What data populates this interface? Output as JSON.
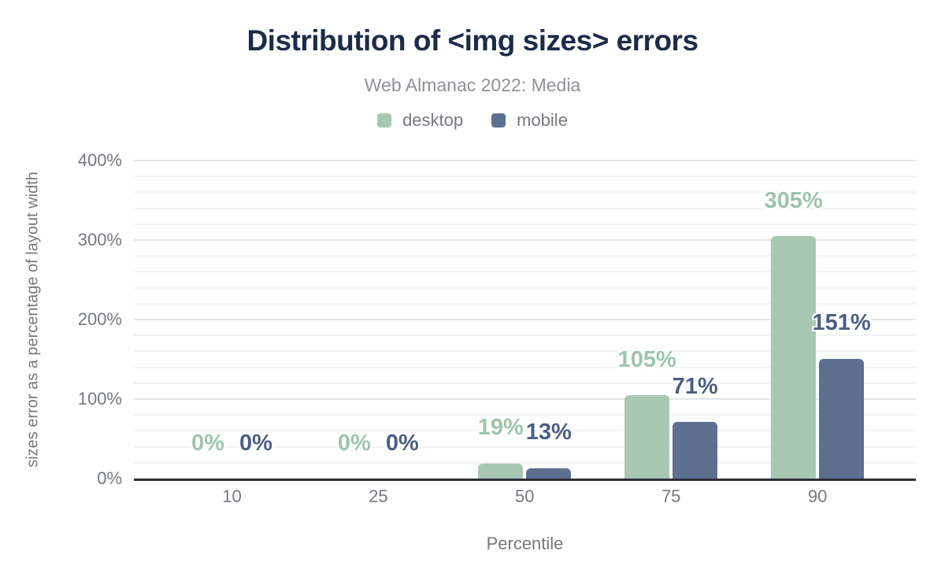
{
  "chart_data": {
    "type": "bar",
    "title": "Distribution of <img sizes> errors",
    "subtitle": "Web Almanac 2022: Media",
    "xlabel": "Percentile",
    "ylabel": "sizes error as a percentage of layout width",
    "categories": [
      "10",
      "25",
      "50",
      "75",
      "90"
    ],
    "series": [
      {
        "name": "desktop",
        "color": "#a8c7b3",
        "label_color": "#9ec4ad",
        "values": [
          0,
          0,
          19,
          105,
          305
        ]
      },
      {
        "name": "mobile",
        "color": "#5e7090",
        "label_color": "#4c5f82",
        "values": [
          0,
          0,
          13,
          71,
          151
        ]
      }
    ],
    "value_suffix": "%",
    "ylim": [
      0,
      400
    ],
    "y_major_step": 100,
    "y_minor_step": 20,
    "y_tick_values": [
      0,
      100,
      200,
      300,
      400
    ],
    "y_tick_labels": [
      "0%",
      "100%",
      "200%",
      "300%",
      "400%"
    ],
    "grid": "on",
    "legend_position": "top"
  },
  "colors": {
    "title": "#1d2b49",
    "subtitle": "#8f9196",
    "tick_text": "#75797e",
    "axis_line": "#2d3134",
    "grid_major": "#e4e6e8",
    "grid_minor": "#f2f3f5",
    "background": "#ffffff"
  }
}
